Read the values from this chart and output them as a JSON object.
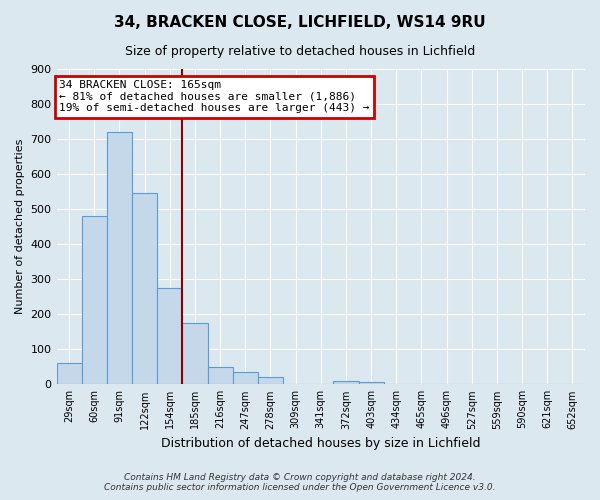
{
  "title": "34, BRACKEN CLOSE, LICHFIELD, WS14 9RU",
  "subtitle": "Size of property relative to detached houses in Lichfield",
  "xlabel": "Distribution of detached houses by size in Lichfield",
  "ylabel": "Number of detached properties",
  "footer_line1": "Contains HM Land Registry data © Crown copyright and database right 2024.",
  "footer_line2": "Contains public sector information licensed under the Open Government Licence v3.0.",
  "bin_labels": [
    "29sqm",
    "60sqm",
    "91sqm",
    "122sqm",
    "154sqm",
    "185sqm",
    "216sqm",
    "247sqm",
    "278sqm",
    "309sqm",
    "341sqm",
    "372sqm",
    "403sqm",
    "434sqm",
    "465sqm",
    "496sqm",
    "527sqm",
    "559sqm",
    "590sqm",
    "621sqm",
    "652sqm"
  ],
  "bar_values": [
    60,
    480,
    720,
    545,
    275,
    175,
    50,
    35,
    20,
    0,
    0,
    10,
    8,
    0,
    0,
    0,
    0,
    0,
    0,
    0,
    0
  ],
  "bar_color": "#c5d8ea",
  "bar_edge_color": "#5b9bd5",
  "vline_x": 4.5,
  "vline_color": "#8b0000",
  "annotation_title": "34 BRACKEN CLOSE: 165sqm",
  "annotation_line1": "← 81% of detached houses are smaller (1,886)",
  "annotation_line2": "19% of semi-detached houses are larger (443) →",
  "annotation_box_color": "#cc0000",
  "ylim": [
    0,
    900
  ],
  "yticks": [
    0,
    100,
    200,
    300,
    400,
    500,
    600,
    700,
    800,
    900
  ],
  "bg_color": "#dce8f0",
  "plot_bg_color": "#dce8f0",
  "grid_color": "#ffffff"
}
